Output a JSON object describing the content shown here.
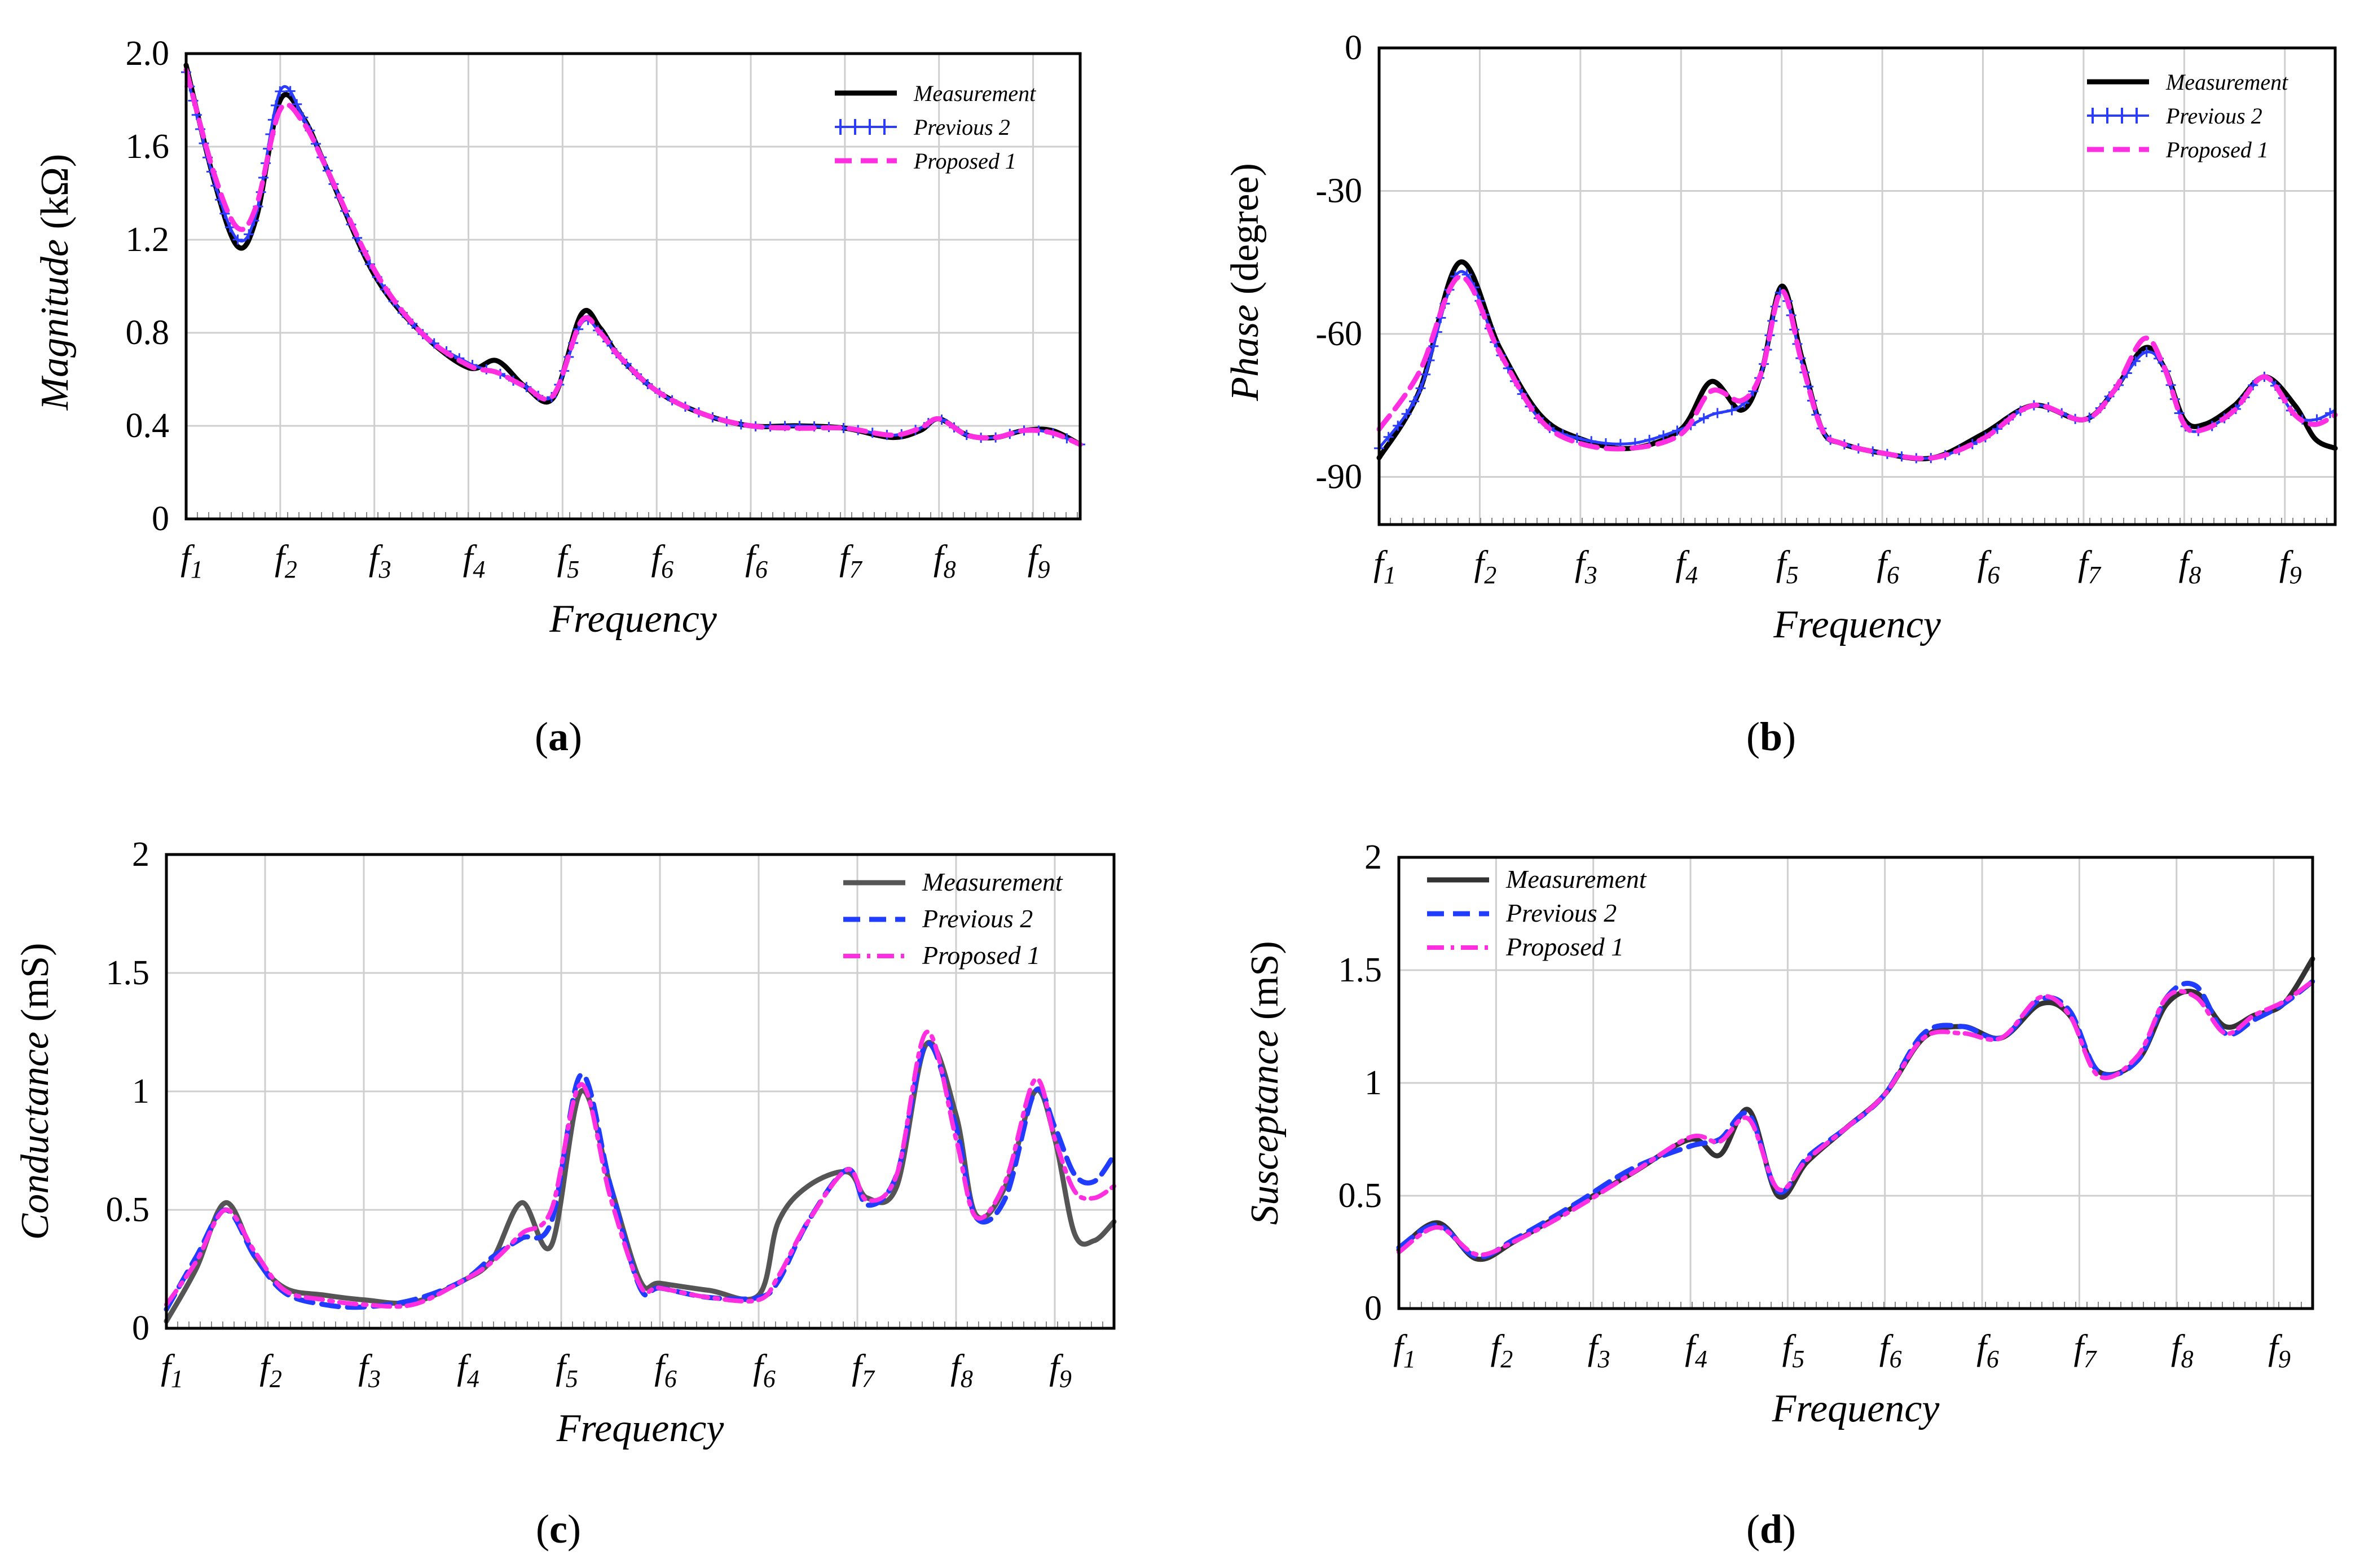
{
  "chart_data": [
    {
      "id": "a",
      "type": "line",
      "caption": "a",
      "ylabel_main": "Magnitude",
      "ylabel_unit": " (kΩ)",
      "xlabel": "Frequency",
      "ylim": [
        0,
        2.0
      ],
      "yticks": [
        "0",
        "0.4",
        "0.8",
        "1.2",
        "1.6",
        "2.0"
      ],
      "ytick_values": [
        0,
        0.4,
        0.8,
        1.2,
        1.6,
        2.0
      ],
      "xticks": [
        "f1",
        "f2",
        "f3",
        "f4",
        "f5",
        "f6",
        "f6",
        "f7",
        "f8",
        "f9"
      ],
      "xlim": [
        0,
        9.5
      ],
      "series": [
        {
          "name": "Measurement",
          "color": "#000000",
          "style": "solid",
          "x": [
            0,
            0.3,
            0.55,
            0.75,
            1.0,
            1.25,
            1.5,
            2.0,
            2.5,
            3.0,
            3.3,
            3.6,
            3.9,
            4.2,
            4.4,
            4.6,
            5.0,
            5.5,
            6.0,
            6.5,
            7.0,
            7.5,
            7.8,
            8.0,
            8.3,
            8.6,
            8.9,
            9.2,
            9.5
          ],
          "y": [
            1.95,
            1.45,
            1.17,
            1.3,
            1.8,
            1.72,
            1.5,
            1.05,
            0.8,
            0.65,
            0.68,
            0.57,
            0.52,
            0.88,
            0.82,
            0.7,
            0.55,
            0.45,
            0.4,
            0.4,
            0.39,
            0.35,
            0.38,
            0.43,
            0.36,
            0.35,
            0.38,
            0.38,
            0.32
          ]
        },
        {
          "name": "Previous 2",
          "color": "#2a3cff",
          "style": "plus-marker",
          "x": [
            0,
            0.3,
            0.55,
            0.75,
            1.0,
            1.25,
            1.5,
            2.0,
            2.5,
            3.0,
            3.3,
            3.6,
            3.9,
            4.2,
            4.4,
            4.6,
            5.0,
            5.5,
            6.0,
            6.5,
            7.0,
            7.5,
            7.8,
            8.0,
            8.3,
            8.6,
            8.9,
            9.2,
            9.5
          ],
          "y": [
            1.92,
            1.45,
            1.2,
            1.32,
            1.84,
            1.72,
            1.5,
            1.06,
            0.8,
            0.67,
            0.63,
            0.57,
            0.53,
            0.84,
            0.8,
            0.7,
            0.55,
            0.45,
            0.4,
            0.4,
            0.39,
            0.36,
            0.39,
            0.43,
            0.36,
            0.35,
            0.38,
            0.37,
            0.32
          ]
        },
        {
          "name": "Proposed 1",
          "color": "#ff2ee0",
          "style": "dashed",
          "x": [
            0,
            0.3,
            0.55,
            0.75,
            1.0,
            1.25,
            1.5,
            2.0,
            2.5,
            3.0,
            3.3,
            3.6,
            3.9,
            4.2,
            4.4,
            4.6,
            5.0,
            5.5,
            6.0,
            6.5,
            7.0,
            7.5,
            7.8,
            8.0,
            8.3,
            8.6,
            8.9,
            9.2,
            9.5
          ],
          "y": [
            1.93,
            1.48,
            1.25,
            1.35,
            1.76,
            1.7,
            1.5,
            1.07,
            0.8,
            0.66,
            0.63,
            0.57,
            0.53,
            0.85,
            0.8,
            0.7,
            0.55,
            0.45,
            0.4,
            0.39,
            0.39,
            0.36,
            0.39,
            0.43,
            0.36,
            0.35,
            0.38,
            0.37,
            0.32
          ]
        }
      ]
    },
    {
      "id": "b",
      "type": "line",
      "caption": "b",
      "ylabel_main": "Phase",
      "ylabel_unit": " (degree)",
      "xlabel": "Frequency",
      "ylim": [
        -100,
        0
      ],
      "yticks": [
        "0",
        "-30",
        "-60",
        "-90"
      ],
      "ytick_values": [
        0,
        -30,
        -60,
        -90
      ],
      "xticks": [
        "f1",
        "f2",
        "f3",
        "f4",
        "f5",
        "f6",
        "f6",
        "f7",
        "f8",
        "f9"
      ],
      "xlim": [
        0,
        9.5
      ],
      "series": [
        {
          "name": "Measurement",
          "color": "#000000",
          "style": "solid",
          "x": [
            0,
            0.4,
            0.8,
            1.2,
            1.6,
            2.0,
            2.5,
            3.0,
            3.3,
            3.6,
            3.8,
            4.0,
            4.2,
            4.4,
            4.6,
            5.0,
            5.5,
            6.0,
            6.5,
            7.0,
            7.3,
            7.6,
            7.8,
            8.0,
            8.2,
            8.5,
            8.8,
            9.1,
            9.3,
            9.5
          ],
          "y": [
            -86,
            -72,
            -45,
            -63,
            -77,
            -82,
            -84,
            -80,
            -70,
            -76,
            -68,
            -50,
            -65,
            -80,
            -83,
            -85,
            -86,
            -81,
            -75,
            -78,
            -72,
            -63,
            -67,
            -78,
            -79,
            -75,
            -69,
            -75,
            -82,
            -84
          ]
        },
        {
          "name": "Previous 2",
          "color": "#2a3cff",
          "style": "plus-marker",
          "x": [
            0,
            0.4,
            0.8,
            1.2,
            1.6,
            2.0,
            2.5,
            3.0,
            3.3,
            3.6,
            3.8,
            4.0,
            4.2,
            4.4,
            4.6,
            5.0,
            5.5,
            6.0,
            6.5,
            7.0,
            7.3,
            7.6,
            7.8,
            8.0,
            8.2,
            8.5,
            8.8,
            9.1,
            9.3,
            9.5
          ],
          "y": [
            -84,
            -72,
            -47,
            -64,
            -78,
            -82,
            -83,
            -80,
            -77,
            -75,
            -68,
            -51,
            -66,
            -80,
            -83,
            -85,
            -86,
            -82,
            -75,
            -78,
            -72,
            -64,
            -67,
            -79,
            -80,
            -76,
            -69,
            -77,
            -78,
            -76
          ]
        },
        {
          "name": "Proposed 1",
          "color": "#ff2ee0",
          "style": "dashed",
          "x": [
            0,
            0.4,
            0.8,
            1.2,
            1.6,
            2.0,
            2.5,
            3.0,
            3.3,
            3.6,
            3.8,
            4.0,
            4.2,
            4.4,
            4.6,
            5.0,
            5.5,
            6.0,
            6.5,
            7.0,
            7.3,
            7.6,
            7.8,
            8.0,
            8.2,
            8.5,
            8.8,
            9.1,
            9.3,
            9.5
          ],
          "y": [
            -80,
            -68,
            -48,
            -64,
            -78,
            -83,
            -84,
            -81,
            -72,
            -74,
            -68,
            -51,
            -66,
            -80,
            -83,
            -85,
            -86,
            -82,
            -75,
            -78,
            -72,
            -61,
            -67,
            -79,
            -80,
            -76,
            -69,
            -77,
            -79,
            -77
          ]
        }
      ]
    },
    {
      "id": "c",
      "type": "line",
      "caption": "c",
      "ylabel_main": "Conductance",
      "ylabel_unit": " (mS)",
      "xlabel": "Frequency",
      "ylim": [
        0,
        2
      ],
      "yticks": [
        "0",
        "0.5",
        "1",
        "1.5",
        "2"
      ],
      "ytick_values": [
        0,
        0.5,
        1,
        1.5,
        2
      ],
      "xticks": [
        "f1",
        "f2",
        "f3",
        "f4",
        "f5",
        "f6",
        "f6",
        "f7",
        "f8",
        "f9"
      ],
      "xlim": [
        0,
        9.6
      ],
      "series": [
        {
          "name": "Measurement",
          "color": "#555555",
          "style": "solid",
          "x": [
            0,
            0.3,
            0.6,
            0.9,
            1.2,
            1.6,
            2.0,
            2.5,
            3.0,
            3.3,
            3.6,
            3.9,
            4.2,
            4.5,
            4.8,
            5.0,
            5.5,
            6.0,
            6.2,
            6.5,
            6.9,
            7.1,
            7.4,
            7.7,
            8.0,
            8.2,
            8.5,
            8.8,
            9.0,
            9.2,
            9.4,
            9.6
          ],
          "y": [
            0.03,
            0.25,
            0.53,
            0.3,
            0.17,
            0.14,
            0.12,
            0.11,
            0.2,
            0.29,
            0.53,
            0.35,
            1.0,
            0.6,
            0.2,
            0.19,
            0.16,
            0.14,
            0.45,
            0.6,
            0.66,
            0.55,
            0.6,
            1.2,
            0.9,
            0.48,
            0.6,
            1.0,
            0.8,
            0.4,
            0.37,
            0.45
          ]
        },
        {
          "name": "Previous 2",
          "color": "#1f3cff",
          "style": "dashed",
          "x": [
            0,
            0.3,
            0.6,
            0.9,
            1.2,
            1.6,
            2.0,
            2.5,
            3.0,
            3.3,
            3.6,
            3.9,
            4.2,
            4.5,
            4.8,
            5.0,
            5.5,
            6.0,
            6.2,
            6.5,
            6.9,
            7.1,
            7.4,
            7.7,
            8.0,
            8.2,
            8.5,
            8.8,
            9.0,
            9.2,
            9.4,
            9.6
          ],
          "y": [
            0.08,
            0.3,
            0.5,
            0.3,
            0.15,
            0.1,
            0.09,
            0.12,
            0.2,
            0.3,
            0.38,
            0.45,
            1.07,
            0.6,
            0.17,
            0.17,
            0.13,
            0.13,
            0.2,
            0.45,
            0.67,
            0.52,
            0.65,
            1.2,
            0.85,
            0.47,
            0.55,
            1.0,
            0.85,
            0.65,
            0.62,
            0.73
          ]
        },
        {
          "name": "Proposed 1",
          "color": "#ff2ee0",
          "style": "dashdot",
          "x": [
            0,
            0.3,
            0.6,
            0.9,
            1.2,
            1.6,
            2.0,
            2.5,
            3.0,
            3.3,
            3.6,
            3.9,
            4.2,
            4.5,
            4.8,
            5.0,
            5.5,
            6.0,
            6.2,
            6.5,
            6.9,
            7.1,
            7.4,
            7.7,
            8.0,
            8.2,
            8.5,
            8.8,
            9.0,
            9.2,
            9.4,
            9.6
          ],
          "y": [
            0.1,
            0.28,
            0.5,
            0.32,
            0.16,
            0.12,
            0.1,
            0.1,
            0.2,
            0.28,
            0.4,
            0.5,
            1.03,
            0.55,
            0.18,
            0.17,
            0.13,
            0.12,
            0.22,
            0.45,
            0.67,
            0.54,
            0.65,
            1.25,
            0.8,
            0.47,
            0.62,
            1.05,
            0.8,
            0.58,
            0.55,
            0.6
          ]
        }
      ]
    },
    {
      "id": "d",
      "type": "line",
      "caption": "d",
      "ylabel_main": "Susceptance",
      "ylabel_unit": " (mS)",
      "xlabel": "Frequency",
      "ylim": [
        0,
        2
      ],
      "yticks": [
        "0",
        "0.5",
        "1",
        "1.5",
        "2"
      ],
      "ytick_values": [
        0,
        0.5,
        1,
        1.5,
        2
      ],
      "xticks": [
        "f1",
        "f2",
        "f3",
        "f4",
        "f5",
        "f6",
        "f6",
        "f7",
        "f8",
        "f9"
      ],
      "xlim": [
        0,
        9.4
      ],
      "series": [
        {
          "name": "Measurement",
          "color": "#333333",
          "style": "solid",
          "x": [
            0,
            0.4,
            0.8,
            1.2,
            1.8,
            2.4,
            3.0,
            3.3,
            3.6,
            3.9,
            4.2,
            4.6,
            5.0,
            5.4,
            5.8,
            6.2,
            6.6,
            6.9,
            7.2,
            7.6,
            7.9,
            8.2,
            8.5,
            8.8,
            9.1,
            9.4
          ],
          "y": [
            0.26,
            0.38,
            0.22,
            0.3,
            0.45,
            0.6,
            0.75,
            0.68,
            0.88,
            0.5,
            0.65,
            0.8,
            0.95,
            1.2,
            1.25,
            1.2,
            1.35,
            1.3,
            1.05,
            1.1,
            1.35,
            1.4,
            1.25,
            1.3,
            1.35,
            1.55
          ]
        },
        {
          "name": "Previous 2",
          "color": "#1f3cff",
          "style": "dashed",
          "x": [
            0,
            0.4,
            0.8,
            1.2,
            1.8,
            2.4,
            3.0,
            3.3,
            3.6,
            3.9,
            4.2,
            4.6,
            5.0,
            5.4,
            5.8,
            6.2,
            6.6,
            6.9,
            7.2,
            7.6,
            7.9,
            8.2,
            8.5,
            8.8,
            9.1,
            9.4
          ],
          "y": [
            0.27,
            0.37,
            0.23,
            0.31,
            0.46,
            0.62,
            0.72,
            0.75,
            0.86,
            0.52,
            0.67,
            0.8,
            0.95,
            1.22,
            1.25,
            1.2,
            1.37,
            1.32,
            1.05,
            1.1,
            1.38,
            1.43,
            1.22,
            1.28,
            1.35,
            1.45
          ]
        },
        {
          "name": "Proposed 1",
          "color": "#ff2ee0",
          "style": "dashdot",
          "x": [
            0,
            0.4,
            0.8,
            1.2,
            1.8,
            2.4,
            3.0,
            3.3,
            3.6,
            3.9,
            4.2,
            4.6,
            5.0,
            5.4,
            5.8,
            6.2,
            6.6,
            6.9,
            7.2,
            7.6,
            7.9,
            8.2,
            8.5,
            8.8,
            9.1,
            9.4
          ],
          "y": [
            0.25,
            0.36,
            0.24,
            0.3,
            0.44,
            0.6,
            0.76,
            0.74,
            0.84,
            0.53,
            0.66,
            0.8,
            0.95,
            1.2,
            1.22,
            1.2,
            1.38,
            1.3,
            1.03,
            1.12,
            1.38,
            1.38,
            1.22,
            1.3,
            1.36,
            1.45
          ]
        }
      ]
    }
  ]
}
